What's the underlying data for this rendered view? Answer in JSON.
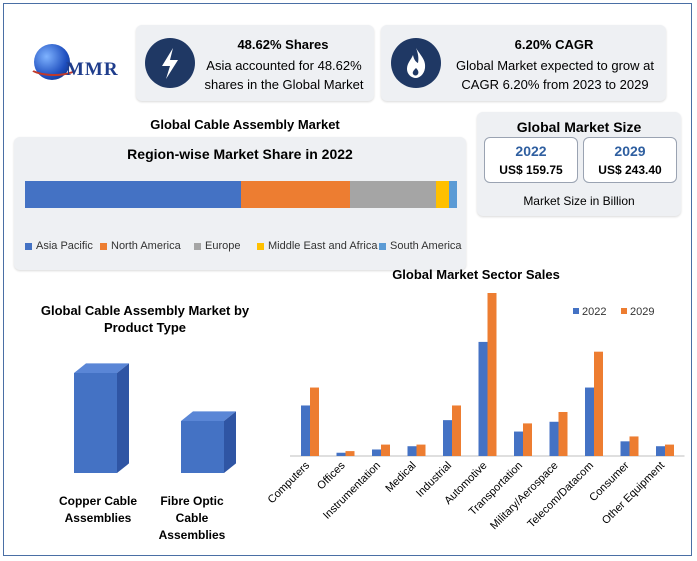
{
  "logo": {
    "text": "MMR"
  },
  "stats": [
    {
      "title": "48.62% Shares",
      "line1": "Asia accounted for 48.62%",
      "line2": "shares in the Global Market",
      "icon": "lightning-icon"
    },
    {
      "title": "6.20% CAGR",
      "line1": "Global Market expected to grow at",
      "line2": "CAGR 6.20% from 2023 to 2029",
      "icon": "flame-icon"
    }
  ],
  "region": {
    "title": "Global Cable Assembly Market",
    "subtitle": "Region-wise Market Share in 2022"
  },
  "market_size": {
    "title": "Global Market Size",
    "items": [
      {
        "year": "2022",
        "value": "US$ 159.75"
      },
      {
        "year": "2029",
        "value": "US$ 243.40"
      }
    ],
    "caption": "Market Size in Billion"
  },
  "product": {
    "title_line1": "Global Cable Assembly Market by",
    "title_line2": "Product Type"
  },
  "sector": {
    "title": "Global Market Sector Sales"
  },
  "colors": {
    "navy": "#1f3864",
    "blue": "#4472c4",
    "orange": "#ed7d31",
    "gray": "#a5a5a5",
    "yellow": "#ffc000",
    "lightblue": "#5b9bd5"
  },
  "chart_data": [
    {
      "type": "bar",
      "orientation": "horizontal-stacked",
      "title": "Region-wise Market Share in 2022",
      "categories": [
        "Asia Pacific",
        "North America",
        "Europe",
        "Middle East and Africa",
        "South America"
      ],
      "values": [
        48.62,
        24.5,
        19.2,
        2.9,
        1.9
      ],
      "colors": [
        "#4472c4",
        "#ed7d31",
        "#a5a5a5",
        "#ffc000",
        "#5b9bd5"
      ],
      "legend": "bottom"
    },
    {
      "type": "bar",
      "title": "Global Cable Assembly Market by Product Type",
      "categories": [
        "Copper Cable Assemblies",
        "Fibre Optic Cable Assemblies"
      ],
      "values": [
        100,
        52
      ],
      "color": "#4472c4",
      "style": "3d"
    },
    {
      "type": "bar",
      "title": "Global Market Sector Sales",
      "categories": [
        "Computers",
        "Offices",
        "Instrumentation",
        "Medical",
        "Industrial",
        "Automotive",
        "Transportation",
        "Military/Aerospace",
        "Telecom/Datacom",
        "Consumer",
        "Other Equipment"
      ],
      "series": [
        {
          "name": "2022",
          "values": [
            31,
            2,
            4,
            6,
            22,
            70,
            15,
            21,
            42,
            9,
            6
          ],
          "color": "#4472c4"
        },
        {
          "name": "2029",
          "values": [
            42,
            3,
            7,
            7,
            31,
            100,
            20,
            27,
            64,
            12,
            7
          ],
          "color": "#ed7d31"
        }
      ],
      "ylim": [
        0,
        100
      ],
      "legend": "top-right"
    }
  ]
}
